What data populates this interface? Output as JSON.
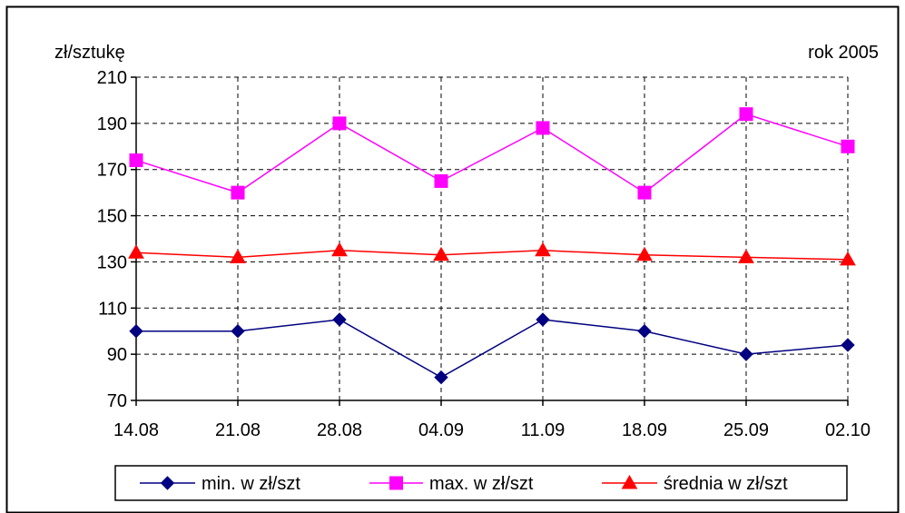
{
  "chart_data": {
    "type": "line",
    "ylabel": "zł/sztukę",
    "corner_label": "rok 2005",
    "x": [
      "14.08",
      "21.08",
      "28.08",
      "04.09",
      "11.09",
      "18.09",
      "25.09",
      "02.10"
    ],
    "ylim": [
      70,
      210
    ],
    "yticks": [
      70,
      90,
      110,
      130,
      150,
      170,
      190,
      210
    ],
    "grid": true,
    "legend_position": "bottom",
    "series": [
      {
        "name": "min. w  zł/szt",
        "values": [
          100,
          100,
          105,
          80,
          105,
          100,
          90,
          94
        ],
        "color": "#000080",
        "marker": "diamond"
      },
      {
        "name": "max. w  zł/szt",
        "values": [
          174,
          160,
          190,
          165,
          188,
          160,
          194,
          180
        ],
        "color": "#ff00ff",
        "marker": "square"
      },
      {
        "name": "średnia w  zł/szt",
        "values": [
          134,
          132,
          135,
          133,
          135,
          133,
          132,
          131
        ],
        "color": "#ff0000",
        "marker": "triangle"
      }
    ]
  }
}
